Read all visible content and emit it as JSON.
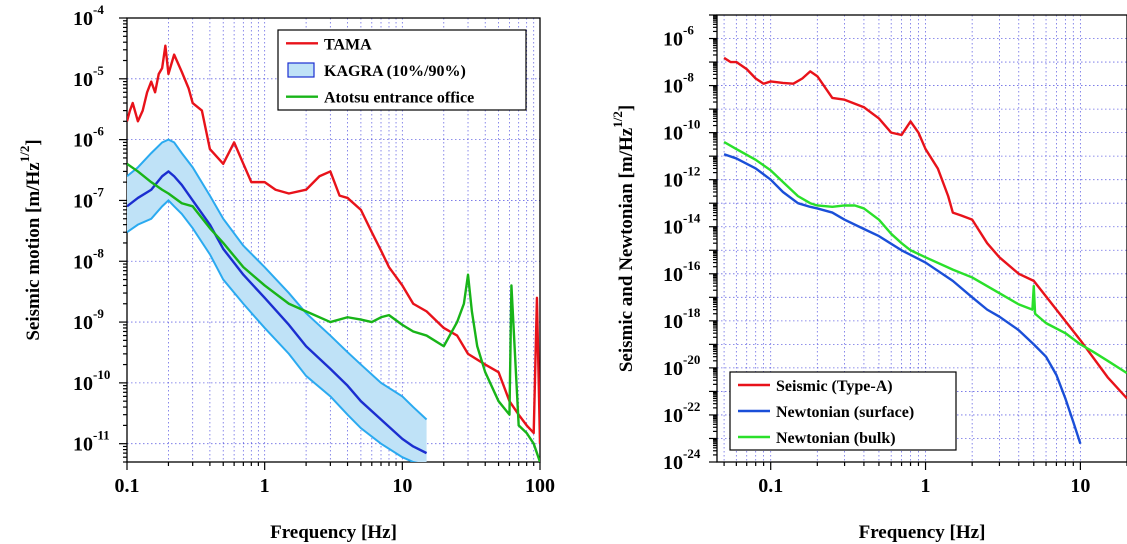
{
  "chart_data": [
    {
      "type": "line",
      "xlabel": "Frequency [Hz]",
      "ylabel": "Seismic motion [m/Hz",
      "ylabel_sup": "1/2",
      "ylabel_end": "]",
      "xscale": "log",
      "yscale": "log",
      "xlim": [
        0.1,
        100
      ],
      "ylim": [
        5e-12,
        0.0001
      ],
      "grid": true,
      "legend_position": "top-right",
      "x_ticks": [
        {
          "value": 0.1,
          "label": "0.1"
        },
        {
          "value": 1,
          "label": "1"
        },
        {
          "value": 10,
          "label": "10"
        },
        {
          "value": 100,
          "label": "100"
        }
      ],
      "y_ticks": [
        {
          "value": 0.0001,
          "base": "10",
          "exp": "-4"
        },
        {
          "value": 1e-05,
          "base": "10",
          "exp": "-5"
        },
        {
          "value": 1e-06,
          "base": "10",
          "exp": "-6"
        },
        {
          "value": 1e-07,
          "base": "10",
          "exp": "-7"
        },
        {
          "value": 1e-08,
          "base": "10",
          "exp": "-8"
        },
        {
          "value": 1e-09,
          "base": "10",
          "exp": "-9"
        },
        {
          "value": 1e-10,
          "base": "10",
          "exp": "-10"
        },
        {
          "value": 1e-11,
          "base": "10",
          "exp": "-11"
        }
      ],
      "series": [
        {
          "name": "TAMA",
          "color": "#e8121a",
          "style": "line",
          "x": [
            0.1,
            0.105,
            0.11,
            0.12,
            0.13,
            0.14,
            0.15,
            0.16,
            0.17,
            0.18,
            0.19,
            0.2,
            0.22,
            0.25,
            0.28,
            0.3,
            0.35,
            0.4,
            0.5,
            0.6,
            0.7,
            0.8,
            1,
            1.2,
            1.5,
            2,
            2.5,
            3,
            3.5,
            4,
            5,
            6,
            7,
            8,
            10,
            12,
            15,
            20,
            25,
            30,
            40,
            50,
            60,
            70,
            80,
            90,
            95,
            100
          ],
          "y": [
            2e-06,
            3e-06,
            4e-06,
            2e-06,
            3e-06,
            6e-06,
            9e-06,
            6e-06,
            1.2e-05,
            1.5e-05,
            3.5e-05,
            1.2e-05,
            2.5e-05,
            1.3e-05,
            7e-06,
            4e-06,
            3e-06,
            7e-07,
            4e-07,
            9e-07,
            4e-07,
            2e-07,
            2e-07,
            1.5e-07,
            1.3e-07,
            1.5e-07,
            2.5e-07,
            3e-07,
            1.2e-07,
            1.1e-07,
            7e-08,
            3e-08,
            1.5e-08,
            8e-09,
            4e-09,
            2e-09,
            1.5e-09,
            8e-10,
            6e-10,
            3e-10,
            2e-10,
            1.5e-10,
            5e-11,
            3e-11,
            2e-11,
            1.5e-11,
            2.5e-09,
            1e-11
          ]
        },
        {
          "name": "KAGRA (10%/90%)",
          "color": "#1b2ed0",
          "fill": "#bfe2f7",
          "band_color": "#2aaaf0",
          "style": "band",
          "x": [
            0.1,
            0.12,
            0.15,
            0.18,
            0.2,
            0.22,
            0.25,
            0.3,
            0.4,
            0.5,
            0.7,
            1,
            1.5,
            2,
            3,
            4,
            5,
            7,
            10,
            12,
            15
          ],
          "y": [
            8e-08,
            1.1e-07,
            1.5e-07,
            2.5e-07,
            3e-07,
            2.5e-07,
            1.8e-07,
            1e-07,
            4e-08,
            1.6e-08,
            6e-09,
            2.5e-09,
            9e-10,
            4e-10,
            1.7e-10,
            9e-11,
            5e-11,
            2.5e-11,
            1.2e-11,
            9e-12,
            7e-12
          ],
          "low": [
            3e-08,
            4e-08,
            5e-08,
            8e-08,
            1e-07,
            8e-08,
            6e-08,
            3.5e-08,
            1.3e-08,
            5e-09,
            2e-09,
            8e-10,
            3e-10,
            1.3e-10,
            6e-11,
            3e-11,
            1.8e-11,
            1e-11,
            6e-12,
            5e-12,
            4.5e-12
          ],
          "high": [
            2.5e-07,
            3.5e-07,
            6e-07,
            9e-07,
            1e-06,
            9e-07,
            6e-07,
            3.5e-07,
            1.2e-07,
            5e-08,
            1.8e-08,
            8e-09,
            3e-09,
            1.4e-09,
            6e-10,
            3.2e-10,
            2e-10,
            1e-10,
            6e-11,
            4e-11,
            2.5e-11
          ]
        },
        {
          "name": "Atotsu entrance office",
          "color": "#18b418",
          "style": "line",
          "x": [
            0.1,
            0.12,
            0.15,
            0.18,
            0.2,
            0.25,
            0.3,
            0.4,
            0.5,
            0.7,
            1,
            1.5,
            2,
            3,
            4,
            5,
            6,
            7,
            8,
            10,
            12,
            15,
            20,
            25,
            28,
            30,
            32,
            35,
            40,
            50,
            60,
            62,
            70,
            80,
            90,
            100
          ],
          "y": [
            4e-07,
            3e-07,
            2e-07,
            1.5e-07,
            1.3e-07,
            9e-08,
            8e-08,
            3.5e-08,
            2e-08,
            8e-09,
            4e-09,
            2e-09,
            1.5e-09,
            1e-09,
            1.2e-09,
            1.1e-09,
            1e-09,
            1.2e-09,
            1.3e-09,
            9e-10,
            7e-10,
            6e-10,
            4e-10,
            1e-09,
            2e-09,
            6e-09,
            1.5e-09,
            4e-10,
            1.5e-10,
            5e-11,
            3e-11,
            4e-09,
            2e-11,
            1.5e-11,
            1e-11,
            5e-12
          ]
        }
      ]
    },
    {
      "type": "line",
      "xlabel": "Frequency [Hz]",
      "ylabel": "Seismic and Newtonian [m/Hz",
      "ylabel_sup": "1/2",
      "ylabel_end": "]",
      "xscale": "log",
      "yscale": "log",
      "xlim": [
        0.045,
        20
      ],
      "ylim": [
        1e-24,
        1e-05
      ],
      "grid": true,
      "legend_position": "bottom-left",
      "x_ticks": [
        {
          "value": 0.1,
          "label": "0.1"
        },
        {
          "value": 1,
          "label": "1"
        },
        {
          "value": 10,
          "label": "10"
        }
      ],
      "y_ticks": [
        {
          "value": 1e-06,
          "base": "10",
          "exp": "-6"
        },
        {
          "value": 1e-08,
          "base": "10",
          "exp": "-8"
        },
        {
          "value": 1e-10,
          "base": "10",
          "exp": "-10"
        },
        {
          "value": 1e-12,
          "base": "10",
          "exp": "-12"
        },
        {
          "value": 1e-14,
          "base": "10",
          "exp": "-14"
        },
        {
          "value": 1e-16,
          "base": "10",
          "exp": "-16"
        },
        {
          "value": 1e-18,
          "base": "10",
          "exp": "-18"
        },
        {
          "value": 1e-20,
          "base": "10",
          "exp": "-20"
        },
        {
          "value": 1e-22,
          "base": "10",
          "exp": "-22"
        },
        {
          "value": 1e-24,
          "base": "10",
          "exp": "-24"
        }
      ],
      "series": [
        {
          "name": "Seismic (Type-A)",
          "color": "#e8121a",
          "style": "line",
          "x": [
            0.05,
            0.055,
            0.06,
            0.07,
            0.08,
            0.09,
            0.1,
            0.12,
            0.14,
            0.16,
            0.18,
            0.2,
            0.25,
            0.3,
            0.4,
            0.5,
            0.6,
            0.7,
            0.8,
            0.9,
            1,
            1.2,
            1.4,
            1.5,
            1.7,
            2,
            2.5,
            3,
            4,
            5,
            7,
            10,
            15,
            20
          ],
          "y": [
            1.5e-07,
            1e-07,
            1e-07,
            5e-08,
            2e-08,
            1.2e-08,
            1.5e-08,
            1.3e-08,
            1.2e-08,
            2e-08,
            4e-08,
            2.5e-08,
            3e-09,
            2.5e-09,
            1.2e-09,
            4e-10,
            1e-10,
            8e-11,
            3e-10,
            1e-10,
            2e-11,
            3e-12,
            2e-13,
            4e-14,
            3e-14,
            2e-14,
            2e-15,
            5e-16,
            1e-16,
            5e-17,
            3e-18,
            1.5e-19,
            4e-21,
            5e-22
          ]
        },
        {
          "name": "Newtonian (surface)",
          "color": "#1a4fd8",
          "style": "line",
          "x": [
            0.05,
            0.06,
            0.08,
            0.1,
            0.12,
            0.15,
            0.18,
            0.2,
            0.25,
            0.3,
            0.4,
            0.5,
            0.7,
            1,
            1.5,
            2,
            2.5,
            3,
            4,
            5,
            6,
            7,
            8,
            9,
            10
          ],
          "y": [
            1.2e-11,
            8e-12,
            3e-12,
            1e-12,
            3e-13,
            1e-13,
            7e-14,
            6e-14,
            4e-14,
            2e-14,
            8e-15,
            4e-15,
            1e-15,
            3e-16,
            5e-17,
            1e-17,
            3e-18,
            1.5e-18,
            4e-19,
            1e-19,
            3e-20,
            5e-21,
            5e-22,
            5e-23,
            6e-24
          ]
        },
        {
          "name": "Newtonian (bulk)",
          "color": "#2ae02a",
          "style": "line",
          "x": [
            0.05,
            0.06,
            0.08,
            0.1,
            0.12,
            0.15,
            0.18,
            0.2,
            0.25,
            0.3,
            0.35,
            0.4,
            0.5,
            0.6,
            0.7,
            0.8,
            1,
            1.5,
            2,
            3,
            4,
            4.9,
            5,
            5.1,
            6,
            8,
            10,
            12,
            15,
            20
          ],
          "y": [
            4e-11,
            2e-11,
            7e-12,
            2.5e-12,
            8e-13,
            2e-13,
            1e-13,
            8e-14,
            7e-14,
            8e-14,
            8e-14,
            6e-14,
            2e-14,
            5e-15,
            2e-15,
            1e-15,
            5e-16,
            1.5e-16,
            7e-17,
            1.5e-17,
            5e-18,
            3e-18,
            3e-17,
            2e-18,
            8e-19,
            3e-19,
            1e-19,
            5e-20,
            2e-20,
            6e-21
          ]
        }
      ]
    }
  ]
}
